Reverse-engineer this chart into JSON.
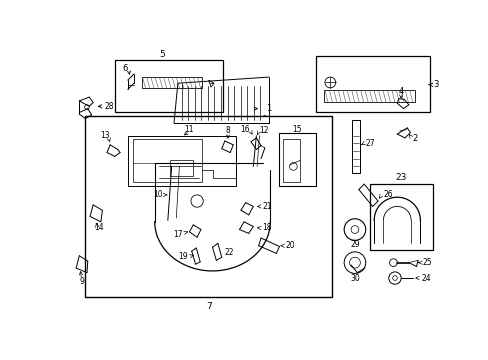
{
  "bg_color": "#ffffff",
  "fig_w": 4.89,
  "fig_h": 3.6,
  "dpi": 100
}
